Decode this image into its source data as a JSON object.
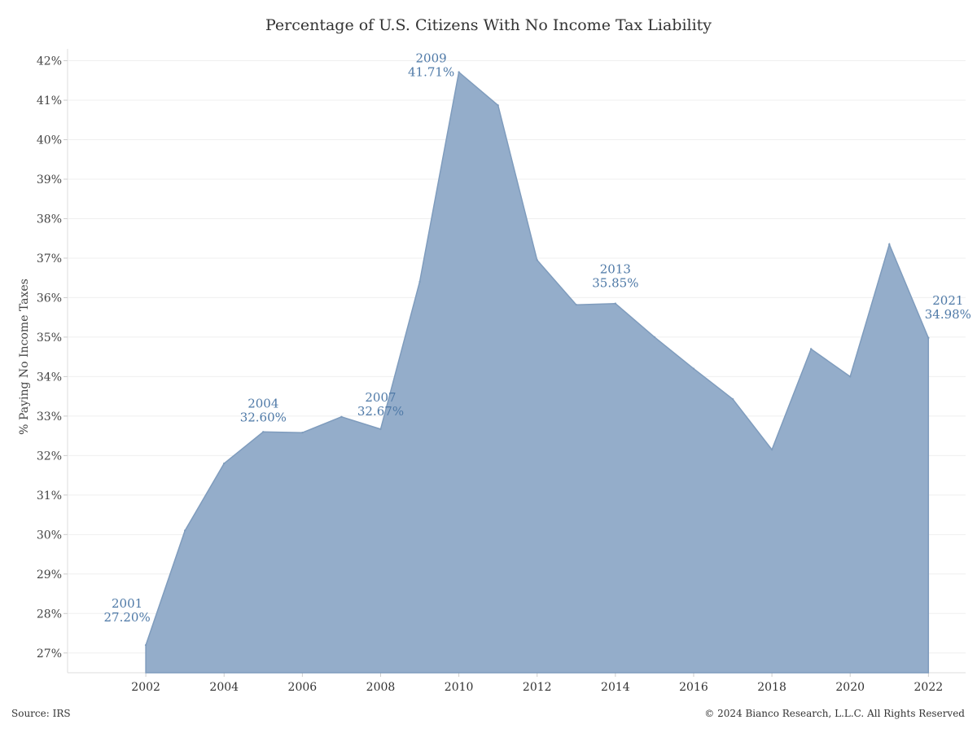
{
  "chart_data": {
    "type": "area",
    "title": "Percentage of U.S. Citizens With No Income Tax Liability",
    "xlabel": "",
    "ylabel": "% Paying No Income Taxes",
    "ylim": [
      26.5,
      42.3
    ],
    "y_ticks": [
      "27%",
      "28%",
      "29%",
      "30%",
      "31%",
      "32%",
      "33%",
      "34%",
      "35%",
      "36%",
      "37%",
      "38%",
      "39%",
      "40%",
      "41%",
      "42%"
    ],
    "x_ticks": [
      "2002",
      "2004",
      "2006",
      "2008",
      "2010",
      "2012",
      "2014",
      "2016",
      "2018",
      "2020",
      "2022"
    ],
    "grid": true,
    "color": "#8ea9c7",
    "series": [
      {
        "x": [
          2001,
          2002,
          2003,
          2004,
          2005,
          2006,
          2007,
          2008,
          2009,
          2010,
          2011,
          2012,
          2013,
          2014,
          2015,
          2016,
          2017,
          2018,
          2019,
          2020,
          2021
        ],
        "values": [
          27.2,
          30.1,
          31.8,
          32.6,
          32.58,
          32.98,
          32.67,
          36.4,
          41.71,
          40.87,
          36.95,
          35.82,
          35.85,
          35.0,
          34.2,
          33.43,
          32.15,
          34.7,
          34.0,
          37.35,
          34.98
        ]
      }
    ],
    "annotations": [
      {
        "year": "2001",
        "value": "27.20%"
      },
      {
        "year": "2004",
        "value": "32.60%"
      },
      {
        "year": "2007",
        "value": "32.67%"
      },
      {
        "year": "2009",
        "value": "41.71%"
      },
      {
        "year": "2013",
        "value": "35.85%"
      },
      {
        "year": "2021",
        "value": "34.98%"
      }
    ],
    "annotation_color": "#4e79a7",
    "source": "Source: IRS",
    "copyright": "© 2024 Bianco Research, L.L.C. All Rights Reserved"
  }
}
